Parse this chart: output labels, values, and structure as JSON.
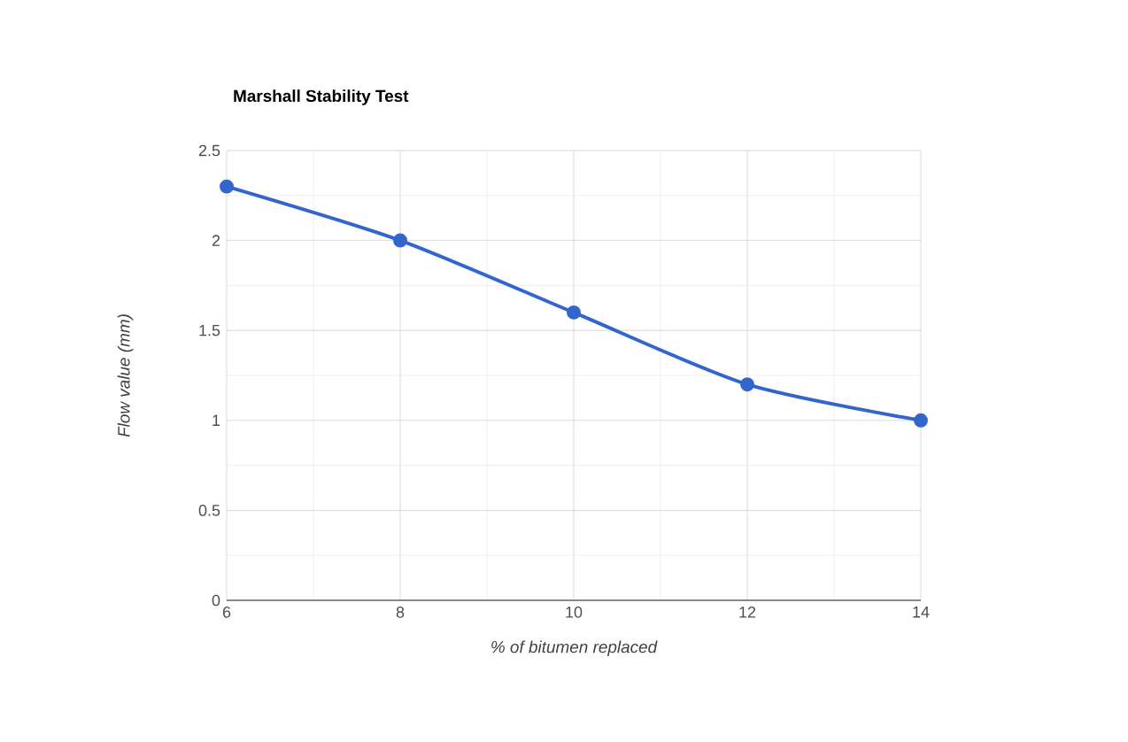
{
  "chart_data": {
    "type": "line",
    "title": "Marshall Stability Test",
    "xlabel": "% of bitumen replaced",
    "ylabel": "Flow value (mm)",
    "x": [
      6,
      8,
      10,
      12,
      14
    ],
    "series": [
      {
        "color": "#3366cc",
        "values": [
          2.3,
          2.0,
          1.6,
          1.2,
          1.0
        ]
      }
    ],
    "xlim": [
      6,
      14
    ],
    "xticks": [
      6,
      8,
      10,
      12,
      14
    ],
    "ylim": [
      0,
      2.5
    ],
    "yticks": [
      0,
      0.5,
      1,
      1.5,
      2,
      2.5
    ],
    "grid": true,
    "marker": "circle",
    "line_style": "solid"
  }
}
